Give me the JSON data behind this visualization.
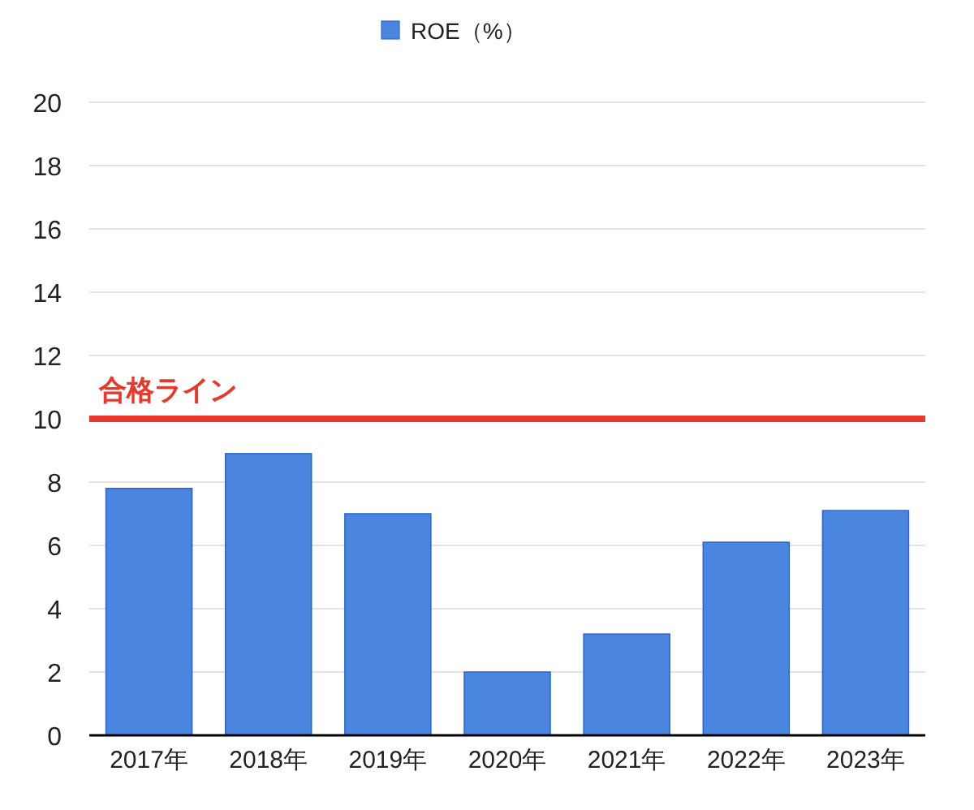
{
  "chart_data": {
    "type": "bar",
    "categories": [
      "2017年",
      "2018年",
      "2019年",
      "2020年",
      "2021年",
      "2022年",
      "2023年"
    ],
    "series": [
      {
        "name": "ROE（%）",
        "color": "#4a86e0",
        "values": [
          7.8,
          8.9,
          7.0,
          2.0,
          3.2,
          6.1,
          7.1
        ]
      }
    ],
    "ylim": [
      0,
      20
    ],
    "yticks": [
      0,
      2,
      4,
      6,
      8,
      10,
      12,
      14,
      16,
      18,
      20
    ],
    "grid": "y",
    "legend": "top",
    "ref_lines": [
      {
        "axis": "y",
        "value": 10,
        "label": "合格ライン",
        "color": "#e8382b"
      }
    ]
  }
}
